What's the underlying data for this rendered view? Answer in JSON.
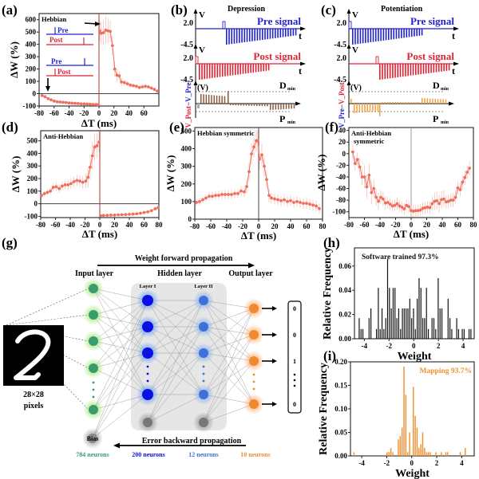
{
  "colors": {
    "stdp_marker": "#f07060",
    "stdp_err": "#f4b8b0",
    "pre_blue": "#2222cc",
    "post_red": "#dd2233",
    "brown": "#8b5a3a",
    "orange": "#f0a040",
    "input_green": "#3a9a70",
    "l1_blue": "#0a10e0",
    "l2_blue": "#3d70d8",
    "output_orange": "#f08a30",
    "hist_black": "#111111",
    "hist_orange": "#f09030"
  },
  "panel_labels": {
    "a": "(a)",
    "b": "(b)",
    "c": "(c)",
    "d": "(d)",
    "e": "(e)",
    "f": "(f)",
    "g": "(g)",
    "h": "(h)",
    "i": "(i)"
  },
  "chart_data": [
    {
      "id": "a",
      "type": "scatter",
      "title": "Hebbian",
      "xlabel": "ΔT (ms)",
      "ylabel": "ΔW (%)",
      "xlim": [
        -80,
        80
      ],
      "ylim": [
        -100,
        650
      ],
      "xticks": [
        -80,
        -60,
        -40,
        -20,
        0,
        20,
        40,
        60
      ],
      "yticks": [
        -100,
        0,
        100,
        200,
        300,
        400,
        500,
        600
      ],
      "inset": {
        "pre_label": "Pre",
        "post_label": "Post"
      },
      "series": [
        {
          "name": "neg",
          "x": [
            -76,
            -72,
            -68,
            -64,
            -60,
            -56,
            -52,
            -48,
            -44,
            -40,
            -36,
            -32,
            -28,
            -24,
            -20,
            -16,
            -12,
            -8,
            -4,
            -1
          ],
          "y": [
            -15,
            -25,
            -40,
            -50,
            -60,
            -66,
            -68,
            -70,
            -72,
            -75,
            -77,
            -78,
            -80,
            -82,
            -83,
            -84,
            -86,
            -87,
            -88,
            -90
          ]
        },
        {
          "name": "pos",
          "x": [
            1,
            3,
            6,
            9,
            12,
            15,
            18,
            21,
            24,
            27,
            30,
            34,
            38,
            42,
            46,
            50,
            54,
            58,
            62,
            66,
            70,
            74,
            78
          ],
          "y": [
            510,
            490,
            495,
            515,
            510,
            505,
            390,
            200,
            150,
            145,
            95,
            90,
            80,
            70,
            65,
            60,
            50,
            55,
            60,
            55,
            45,
            35,
            20
          ],
          "err": [
            80,
            90,
            100,
            110,
            100,
            90,
            80,
            60,
            50,
            40,
            30,
            20,
            20,
            15,
            15,
            15,
            15,
            15,
            15,
            15,
            15,
            15,
            15
          ]
        }
      ]
    },
    {
      "id": "b",
      "type": "waveform",
      "title": "Depression",
      "pre_label": "Pre signal",
      "post_label": "Post signal",
      "v_high": "2.0",
      "v_low": "-4.5",
      "v_axis": "V",
      "t_axis": "t",
      "diff_axis": "(V)",
      "diff_label": "V_Post−V_Pre",
      "dmin": "D",
      "pmin": "P",
      "sub": "min"
    },
    {
      "id": "c",
      "type": "waveform",
      "title": "Potentiation",
      "pre_label": "Pre signal",
      "post_label": "Post signal",
      "v_high": "2.0",
      "v_low": "-4.5",
      "v_axis": "V",
      "t_axis": "t",
      "diff_axis": "(V)",
      "diff_label": "V_Pre−V_Post",
      "dmin": "D",
      "pmin": "P",
      "sub": "min"
    },
    {
      "id": "d",
      "type": "scatter",
      "title": "Anti-Hebbian",
      "xlabel": "ΔT (ms)",
      "ylabel": "ΔW (%)",
      "xlim": [
        -80,
        80
      ],
      "ylim": [
        -110,
        580
      ],
      "xticks": [
        -80,
        -60,
        -40,
        -20,
        0,
        20,
        40,
        60,
        80
      ],
      "yticks": [
        -100,
        0,
        100,
        200,
        300,
        400,
        500
      ],
      "series": [
        {
          "name": "neg",
          "x": [
            -79,
            -75,
            -71,
            -67,
            -63,
            -59,
            -55,
            -51,
            -47,
            -43,
            -39,
            -35,
            -31,
            -27,
            -23,
            -19,
            -16,
            -13,
            -10,
            -7,
            -4,
            -1
          ],
          "y": [
            65,
            80,
            90,
            100,
            130,
            135,
            120,
            140,
            150,
            150,
            160,
            175,
            185,
            180,
            170,
            180,
            210,
            290,
            380,
            450,
            460,
            490
          ],
          "err": [
            20,
            20,
            25,
            25,
            30,
            30,
            30,
            35,
            35,
            40,
            40,
            40,
            45,
            45,
            50,
            60,
            80,
            100,
            110,
            110,
            100,
            80
          ]
        },
        {
          "name": "pos",
          "x": [
            1,
            5,
            10,
            15,
            20,
            25,
            30,
            35,
            40,
            45,
            50,
            55,
            60,
            65,
            70,
            75,
            79
          ],
          "y": [
            -95,
            -93,
            -92,
            -90,
            -90,
            -88,
            -87,
            -86,
            -84,
            -82,
            -80,
            -75,
            -70,
            -65,
            -55,
            -40,
            -30
          ]
        }
      ]
    },
    {
      "id": "e",
      "type": "scatter",
      "title": "Hebbian symmetric",
      "xlabel": "ΔT (ms)",
      "ylabel": "ΔW (%)",
      "xlim": [
        -80,
        80
      ],
      "ylim": [
        0,
        520
      ],
      "xticks": [
        -80,
        -60,
        -40,
        -20,
        0,
        20,
        40,
        60,
        80
      ],
      "yticks": [
        0,
        100,
        200,
        300,
        400,
        500
      ],
      "series": [
        {
          "name": "all",
          "x": [
            -78,
            -74,
            -70,
            -66,
            -62,
            -58,
            -54,
            -50,
            -46,
            -42,
            -38,
            -34,
            -30,
            -26,
            -22,
            -18,
            -15,
            -12,
            -9,
            -6,
            -3,
            -1,
            1,
            4,
            7,
            10,
            13,
            16,
            20,
            24,
            28,
            32,
            36,
            40,
            44,
            48,
            52,
            56,
            60,
            64,
            68,
            72,
            76
          ],
          "y": [
            95,
            100,
            110,
            120,
            130,
            130,
            135,
            135,
            140,
            140,
            140,
            140,
            145,
            145,
            160,
            155,
            185,
            270,
            370,
            410,
            445,
            445,
            340,
            365,
            300,
            225,
            135,
            120,
            115,
            110,
            105,
            110,
            100,
            105,
            95,
            100,
            95,
            90,
            90,
            85,
            80,
            75,
            60
          ],
          "err": [
            20,
            20,
            20,
            20,
            25,
            25,
            25,
            25,
            25,
            25,
            25,
            25,
            25,
            25,
            30,
            30,
            40,
            50,
            60,
            60,
            60,
            60,
            60,
            60,
            60,
            50,
            40,
            30,
            30,
            30,
            30,
            30,
            30,
            30,
            30,
            30,
            30,
            30,
            30,
            30,
            30,
            30,
            30
          ]
        }
      ]
    },
    {
      "id": "f",
      "type": "scatter",
      "title": "Anti-Hebbian symmetric",
      "xlabel": "ΔT (ms)",
      "ylabel": "ΔW (%)",
      "xlim": [
        -80,
        80
      ],
      "ylim": [
        -110,
        45
      ],
      "xticks": [
        -80,
        -60,
        -40,
        -20,
        0,
        20,
        40,
        60,
        80
      ],
      "yticks": [
        -100,
        -80,
        -60,
        -40,
        -20,
        0,
        20,
        40
      ],
      "series": [
        {
          "name": "all",
          "x": [
            -75,
            -72,
            -69,
            -66,
            -63,
            -60,
            -57,
            -54,
            -51,
            -48,
            -45,
            -42,
            -39,
            -36,
            -33,
            -30,
            -27,
            -24,
            -21,
            -18,
            -15,
            -12,
            -9,
            -6,
            -3,
            0,
            3,
            6,
            9,
            12,
            15,
            18,
            21,
            24,
            27,
            30,
            33,
            36,
            39,
            42,
            45,
            48,
            51,
            54,
            57,
            60,
            63,
            66,
            69,
            72,
            75
          ],
          "y": [
            3,
            -17,
            -10,
            -23,
            -40,
            -40,
            -57,
            -37,
            -67,
            -60,
            -75,
            -82,
            -75,
            -78,
            -85,
            -84,
            -87,
            -90,
            -89,
            -86,
            -90,
            -92,
            -95,
            -89,
            -91,
            -98,
            -99,
            -98,
            -98,
            -97,
            -94,
            -93,
            -92,
            -93,
            -86,
            -82,
            -81,
            -86,
            -79,
            -78,
            -83,
            -82,
            -80,
            -80,
            -75,
            -59,
            -62,
            -49,
            -41,
            -32,
            -25
          ],
          "err": [
            12,
            12,
            12,
            15,
            15,
            20,
            20,
            20,
            20,
            15,
            15,
            15,
            12,
            12,
            12,
            10,
            10,
            10,
            10,
            10,
            10,
            10,
            10,
            10,
            10,
            10,
            10,
            10,
            10,
            10,
            10,
            10,
            10,
            10,
            12,
            15,
            15,
            15,
            15,
            15,
            12,
            12,
            12,
            12,
            12,
            12,
            12,
            12,
            12,
            12,
            12
          ]
        }
      ]
    },
    {
      "id": "h",
      "type": "bar",
      "title": "Software trained",
      "annotation": "Software trained   97.3%",
      "xlabel": "Weight",
      "ylabel": "Relative Frequency",
      "xlim": [
        -4.8,
        4.9
      ],
      "ylim": [
        0,
        0.075
      ],
      "xticks": [
        -4,
        -2,
        0,
        2,
        4
      ],
      "yticks": [
        0.0,
        0.02,
        0.04,
        0.06
      ],
      "ytick_labels": [
        "0.00",
        "0.02",
        "0.04",
        "0.06"
      ],
      "bin_width": 0.11,
      "x": [
        -4.4,
        -4.25,
        -4.1,
        -3.6,
        -3.45,
        -3.0,
        -2.85,
        -2.7,
        -2.55,
        -2.4,
        -2.25,
        -2.1,
        -1.95,
        -1.8,
        -1.65,
        -1.5,
        -1.35,
        -1.2,
        -1.05,
        -0.9,
        -0.75,
        -0.6,
        -0.45,
        -0.3,
        -0.15,
        0.0,
        0.15,
        0.3,
        0.45,
        0.6,
        0.75,
        0.9,
        1.05,
        1.2,
        1.5,
        1.65,
        1.8,
        2.0,
        2.15,
        2.3,
        2.8,
        2.95,
        3.1,
        3.5,
        3.65,
        3.95,
        4.1,
        4.5,
        4.65
      ],
      "values": [
        0.017,
        0.008,
        0.008,
        0.017,
        0.025,
        0.008,
        0.042,
        0.008,
        0.025,
        0.008,
        0.017,
        0.066,
        0.042,
        0.025,
        0.042,
        0.042,
        0.017,
        0.025,
        0.008,
        0.025,
        0.025,
        0.025,
        0.025,
        0.033,
        0.017,
        0.025,
        0.008,
        0.033,
        0.05,
        0.042,
        0.017,
        0.017,
        0.042,
        0.008,
        0.017,
        0.017,
        0.008,
        0.05,
        0.025,
        0.025,
        0.033,
        0.017,
        0.008,
        0.017,
        0.008,
        0.008,
        0.008,
        0.008,
        0.008
      ]
    },
    {
      "id": "i",
      "type": "bar",
      "title": "Mapping",
      "annotation": "Mapping   93.7%",
      "xlabel": "Weight",
      "ylabel": "Relative Frequency",
      "xlim": [
        -4.9,
        5.0
      ],
      "ylim": [
        0,
        0.2
      ],
      "xticks": [
        -4,
        -2,
        0,
        2,
        4
      ],
      "yticks": [
        0.0,
        0.05,
        0.1,
        0.15,
        0.2
      ],
      "ytick_labels": [
        "0.00",
        "0.05",
        "0.10",
        "0.15",
        "0.20"
      ],
      "bin_width": 0.13,
      "x": [
        -4.6,
        -1.95,
        -1.8,
        -1.65,
        -1.5,
        -1.05,
        -0.9,
        -0.75,
        -0.6,
        -0.45,
        -0.3,
        -0.15,
        0.15,
        0.3,
        0.45,
        0.6,
        0.75,
        0.9,
        1.05,
        1.2,
        1.35,
        1.5,
        1.95,
        2.4,
        2.75,
        2.9,
        3.9,
        4.3
      ],
      "values": [
        0.008,
        0.008,
        0.008,
        0.017,
        0.008,
        0.035,
        0.042,
        0.06,
        0.19,
        0.13,
        0.008,
        0.05,
        0.147,
        0.085,
        0.06,
        0.017,
        0.025,
        0.05,
        0.017,
        0.008,
        0.008,
        0.008,
        0.008,
        0.008,
        0.008,
        0.008,
        0.008,
        0.017
      ]
    }
  ],
  "network": {
    "forward_label": "Weight forward propagation",
    "backward_label": "Error backward propagation",
    "input_label": "Input layer",
    "hidden_label": "Hidden layer",
    "output_label": "Output layer",
    "layer1_label": "Layer I",
    "layer2_label": "Layer II",
    "bias_label": "Bias",
    "image_caption_1": "28×28",
    "image_caption_2": "pixels",
    "input_count": "784 neurons",
    "l1_count": "200 neurons",
    "l2_count": "12 neurons",
    "out_count": "10 neurons",
    "output_vector": [
      "0",
      "0",
      "1",
      "0"
    ]
  }
}
